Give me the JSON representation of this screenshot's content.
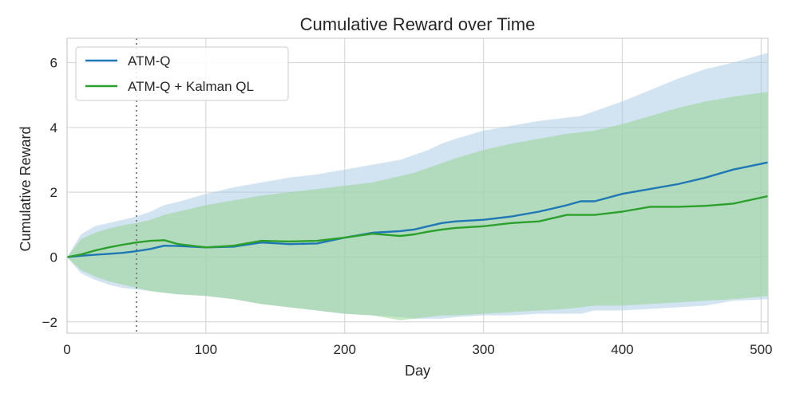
{
  "chart_data": {
    "type": "line",
    "title": "Cumulative Reward over Time",
    "xlabel": "Day",
    "ylabel": "Cumulative Reward",
    "xlim": [
      0,
      505
    ],
    "ylim": [
      -2.35,
      6.75
    ],
    "xticks": [
      0,
      100,
      200,
      300,
      400,
      500
    ],
    "yticks": [
      -2,
      0,
      2,
      4,
      6
    ],
    "xtick_labels": [
      "0",
      "100",
      "200",
      "300",
      "400",
      "500"
    ],
    "ytick_labels": [
      "−2",
      "0",
      "2",
      "4",
      "6"
    ],
    "grid": true,
    "legend_position": "top-left",
    "vline": {
      "x": 50,
      "style": "dotted",
      "color": "#808080"
    },
    "series": [
      {
        "name": "ATM-Q",
        "color": "#1f77b4",
        "band_color": "#a6c8e5",
        "x": [
          0,
          10,
          20,
          30,
          40,
          50,
          60,
          70,
          80,
          100,
          120,
          140,
          160,
          180,
          200,
          220,
          240,
          250,
          260,
          270,
          280,
          300,
          320,
          340,
          360,
          370,
          380,
          400,
          420,
          440,
          460,
          480,
          505
        ],
        "y": [
          0,
          0.04,
          0.07,
          0.1,
          0.13,
          0.18,
          0.25,
          0.35,
          0.34,
          0.3,
          0.32,
          0.45,
          0.4,
          0.42,
          0.6,
          0.75,
          0.8,
          0.85,
          0.95,
          1.05,
          1.1,
          1.15,
          1.25,
          1.4,
          1.6,
          1.72,
          1.72,
          1.95,
          2.1,
          2.25,
          2.45,
          2.7,
          2.92
        ],
        "upper": [
          0,
          0.7,
          0.95,
          1.05,
          1.15,
          1.25,
          1.4,
          1.6,
          1.7,
          1.95,
          2.15,
          2.3,
          2.45,
          2.55,
          2.7,
          2.85,
          3.0,
          3.15,
          3.3,
          3.5,
          3.65,
          3.9,
          4.05,
          4.2,
          4.3,
          4.35,
          4.5,
          4.8,
          5.15,
          5.5,
          5.8,
          6.0,
          6.3
        ],
        "lower": [
          0,
          -0.5,
          -0.7,
          -0.85,
          -0.95,
          -1.0,
          -1.05,
          -1.1,
          -1.15,
          -1.2,
          -1.3,
          -1.45,
          -1.55,
          -1.65,
          -1.75,
          -1.8,
          -1.85,
          -1.9,
          -1.9,
          -1.9,
          -1.85,
          -1.8,
          -1.8,
          -1.75,
          -1.75,
          -1.75,
          -1.65,
          -1.65,
          -1.6,
          -1.55,
          -1.5,
          -1.35,
          -1.3
        ]
      },
      {
        "name": "ATM-Q + Kalman QL",
        "color": "#2ca02c",
        "band_color": "#98d594",
        "x": [
          0,
          10,
          20,
          30,
          40,
          50,
          60,
          70,
          80,
          100,
          120,
          140,
          160,
          180,
          200,
          220,
          240,
          250,
          260,
          270,
          280,
          300,
          320,
          340,
          360,
          370,
          380,
          400,
          420,
          440,
          460,
          480,
          505
        ],
        "y": [
          0,
          0.08,
          0.2,
          0.3,
          0.38,
          0.45,
          0.5,
          0.52,
          0.4,
          0.3,
          0.35,
          0.5,
          0.48,
          0.5,
          0.6,
          0.72,
          0.65,
          0.7,
          0.78,
          0.85,
          0.9,
          0.95,
          1.05,
          1.1,
          1.3,
          1.3,
          1.3,
          1.4,
          1.55,
          1.55,
          1.58,
          1.65,
          1.88
        ],
        "upper": [
          0,
          0.55,
          0.75,
          0.88,
          0.98,
          1.05,
          1.15,
          1.3,
          1.4,
          1.6,
          1.75,
          1.9,
          2.0,
          2.1,
          2.2,
          2.3,
          2.5,
          2.6,
          2.75,
          2.9,
          3.05,
          3.3,
          3.5,
          3.65,
          3.8,
          3.85,
          3.9,
          4.1,
          4.35,
          4.6,
          4.8,
          4.95,
          5.1
        ],
        "lower": [
          0,
          -0.4,
          -0.6,
          -0.75,
          -0.85,
          -0.95,
          -1.05,
          -1.1,
          -1.15,
          -1.2,
          -1.3,
          -1.45,
          -1.55,
          -1.65,
          -1.75,
          -1.8,
          -1.95,
          -1.9,
          -1.85,
          -1.8,
          -1.8,
          -1.75,
          -1.7,
          -1.65,
          -1.6,
          -1.55,
          -1.5,
          -1.5,
          -1.45,
          -1.4,
          -1.35,
          -1.3,
          -1.2
        ]
      }
    ]
  }
}
